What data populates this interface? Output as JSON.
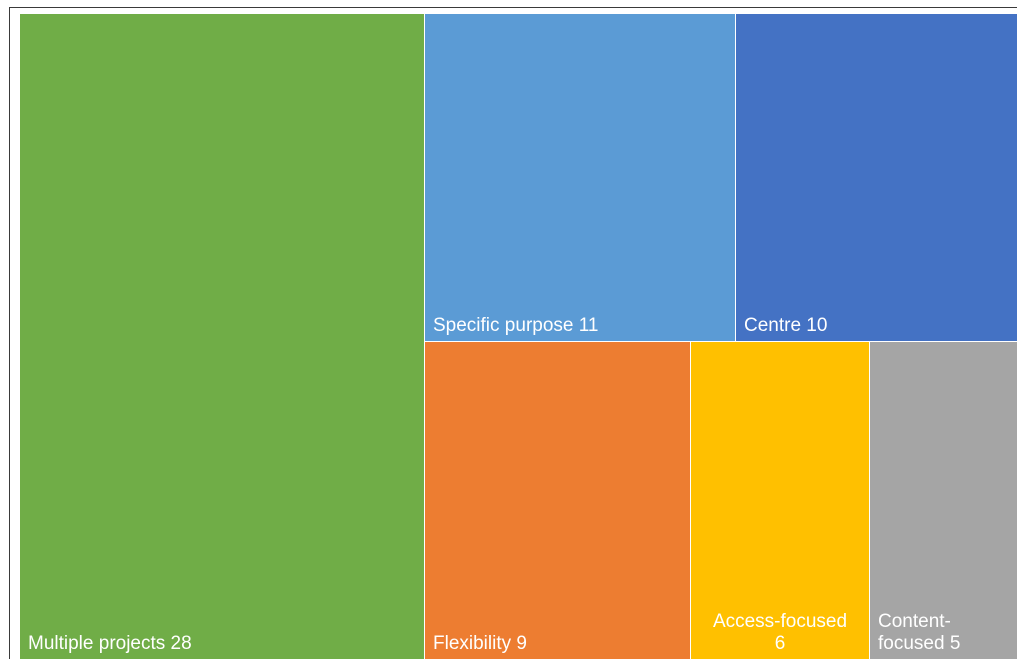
{
  "chart_data": {
    "type": "treemap",
    "items": [
      {
        "label": "Multiple projects",
        "value": 28,
        "color": "#70AD47",
        "label_lines": [
          "Multiple projects 28"
        ],
        "label_align": "left"
      },
      {
        "label": "Specific purpose",
        "value": 11,
        "color": "#5B9BD5",
        "label_lines": [
          "Specific purpose 11"
        ],
        "label_align": "left"
      },
      {
        "label": "Centre",
        "value": 10,
        "color": "#4472C4",
        "label_lines": [
          "Centre 10"
        ],
        "label_align": "left"
      },
      {
        "label": "Flexibility",
        "value": 9,
        "color": "#ED7D31",
        "label_lines": [
          "Flexibility 9"
        ],
        "label_align": "left"
      },
      {
        "label": "Access-focused",
        "value": 6,
        "color": "#FFC000",
        "label_lines": [
          "Access-focused",
          "6"
        ],
        "label_align": "center"
      },
      {
        "label": "Content-focused",
        "value": 5,
        "color": "#A5A5A5",
        "label_lines": [
          "Content-",
          "focused 5"
        ],
        "label_align": "left"
      }
    ]
  }
}
